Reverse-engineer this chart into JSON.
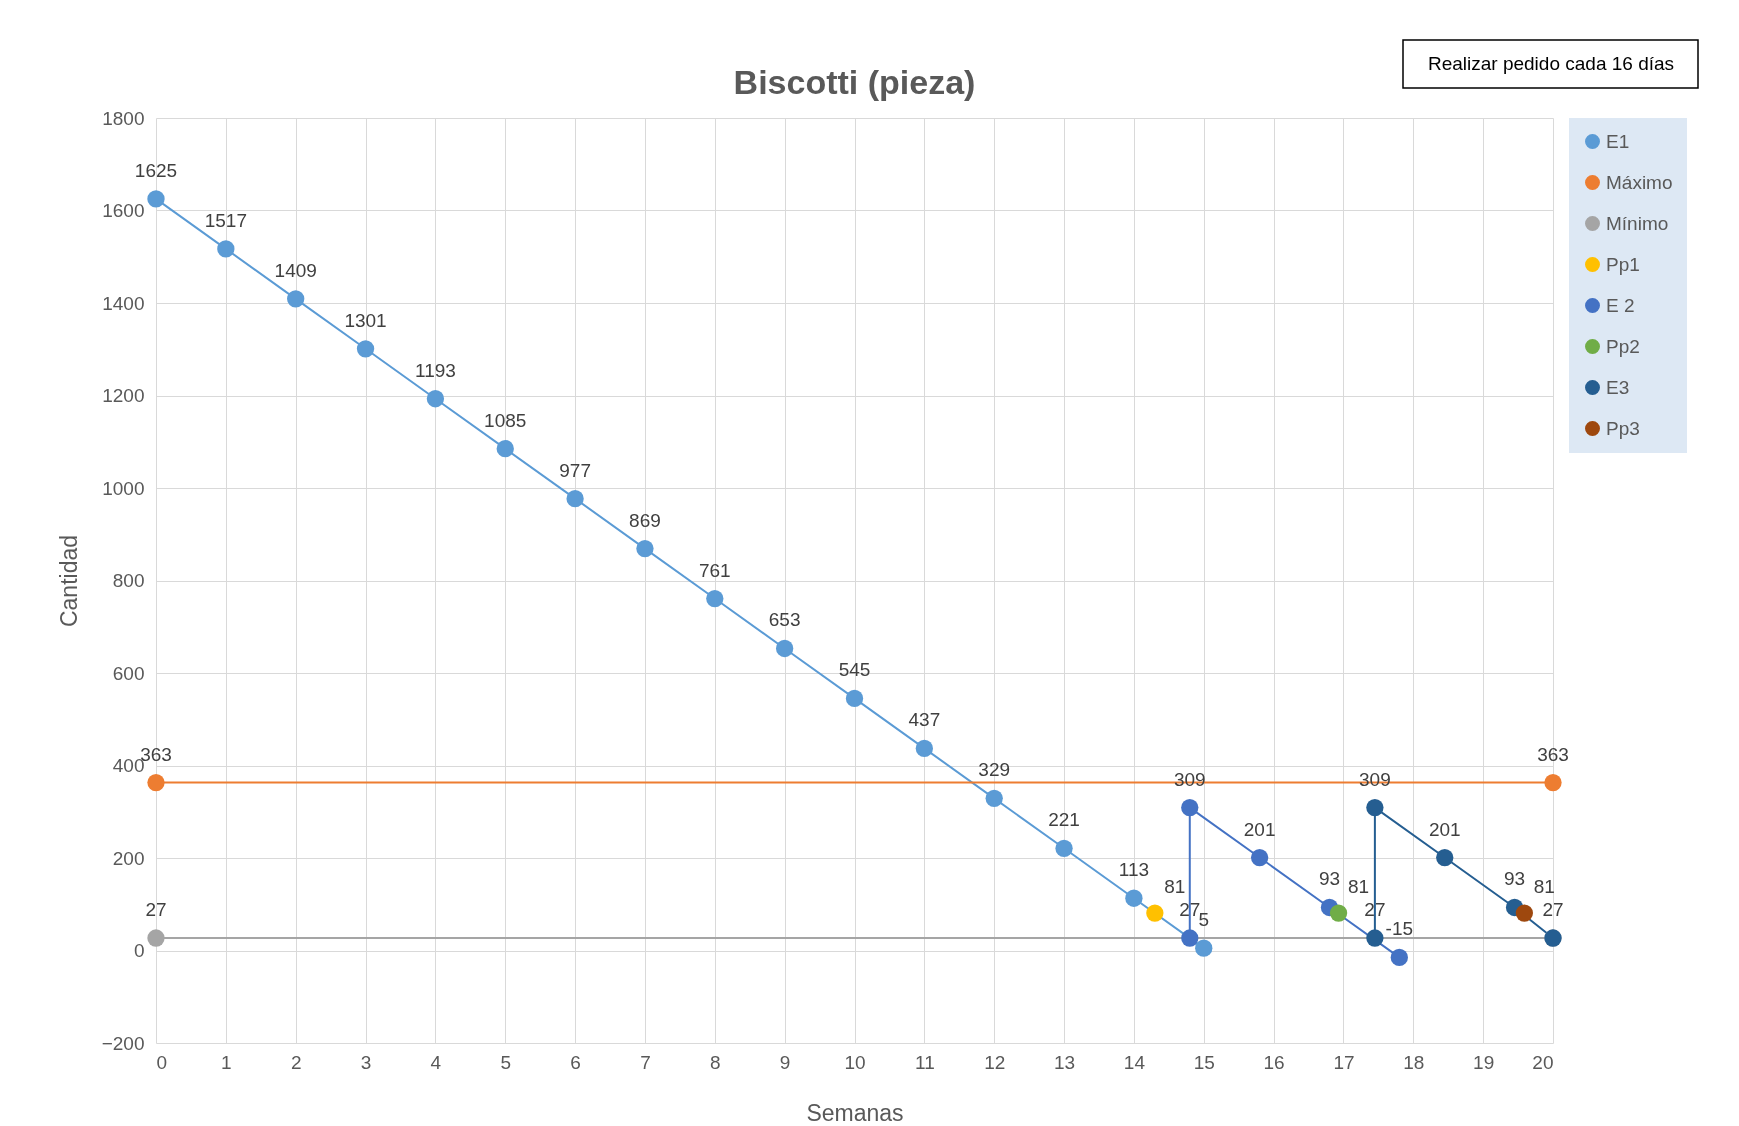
{
  "chart_data": {
    "type": "line",
    "title": "Biscotti (pieza)",
    "xlabel": "Semanas",
    "ylabel": "Cantidad",
    "annotations": [
      "Realizar pedido cada 16 días"
    ],
    "xlim": [
      0,
      20
    ],
    "xticks": [
      0,
      1,
      2,
      3,
      4,
      5,
      6,
      7,
      8,
      9,
      10,
      11,
      12,
      13,
      14,
      15,
      16,
      17,
      18,
      19,
      20
    ],
    "ylim": [
      -200,
      1800
    ],
    "yticks": [
      -200,
      0,
      200,
      400,
      600,
      800,
      1000,
      1200,
      1400,
      1600,
      1800
    ],
    "grid": true,
    "legend": "top right",
    "marker": "circle",
    "line_style": "solid",
    "series": [
      {
        "name": "E1",
        "color": "#5b9bd5",
        "x": [
          0,
          1,
          2,
          3,
          4,
          5,
          6,
          7,
          8,
          9,
          10,
          11,
          12,
          13,
          14,
          15
        ],
        "values": [
          1625,
          1517,
          1409,
          1301,
          1193,
          1085,
          977,
          869,
          761,
          653,
          545,
          437,
          329,
          221,
          113,
          5
        ],
        "value_labels": [
          "1625",
          "1517",
          "1409",
          "1301",
          "1193",
          "1085",
          "977",
          "869",
          "761",
          "653",
          "545",
          "437",
          "329",
          "221",
          "113",
          "5"
        ]
      },
      {
        "name": "Máximo",
        "color": "#ed7d31",
        "x": [
          0,
          20
        ],
        "values": [
          363,
          363
        ],
        "value_labels": [
          "363",
          "363"
        ]
      },
      {
        "name": "Mínimo",
        "color": "#a5a5a5",
        "x": [
          0,
          20
        ],
        "values": [
          27,
          27
        ],
        "value_labels": [
          "27",
          "27"
        ]
      },
      {
        "name": "Pp1",
        "color": "#ffc000",
        "x": [
          14.3
        ],
        "values": [
          81
        ],
        "value_labels": [
          "81"
        ]
      },
      {
        "name": "E 2",
        "color": "#4472c4",
        "x": [
          14.8,
          14.8,
          15.8,
          16.8,
          17.8
        ],
        "values": [
          27,
          309,
          201,
          93,
          -15
        ],
        "value_labels": [
          "27",
          "309",
          "201",
          "93",
          "-15"
        ]
      },
      {
        "name": "Pp2",
        "color": "#70ad47",
        "x": [
          16.93
        ],
        "values": [
          81
        ],
        "value_labels": [
          "81"
        ]
      },
      {
        "name": "E3",
        "color": "#255e91",
        "x": [
          17.45,
          17.45,
          18.45,
          19.45,
          20
        ],
        "values": [
          27,
          309,
          201,
          93,
          27
        ],
        "value_labels": [
          "27",
          "309",
          "201",
          "93",
          null
        ]
      },
      {
        "name": "Pp3",
        "color": "#9e480e",
        "x": [
          19.59
        ],
        "values": [
          81
        ],
        "value_labels": [
          "81"
        ]
      }
    ]
  }
}
